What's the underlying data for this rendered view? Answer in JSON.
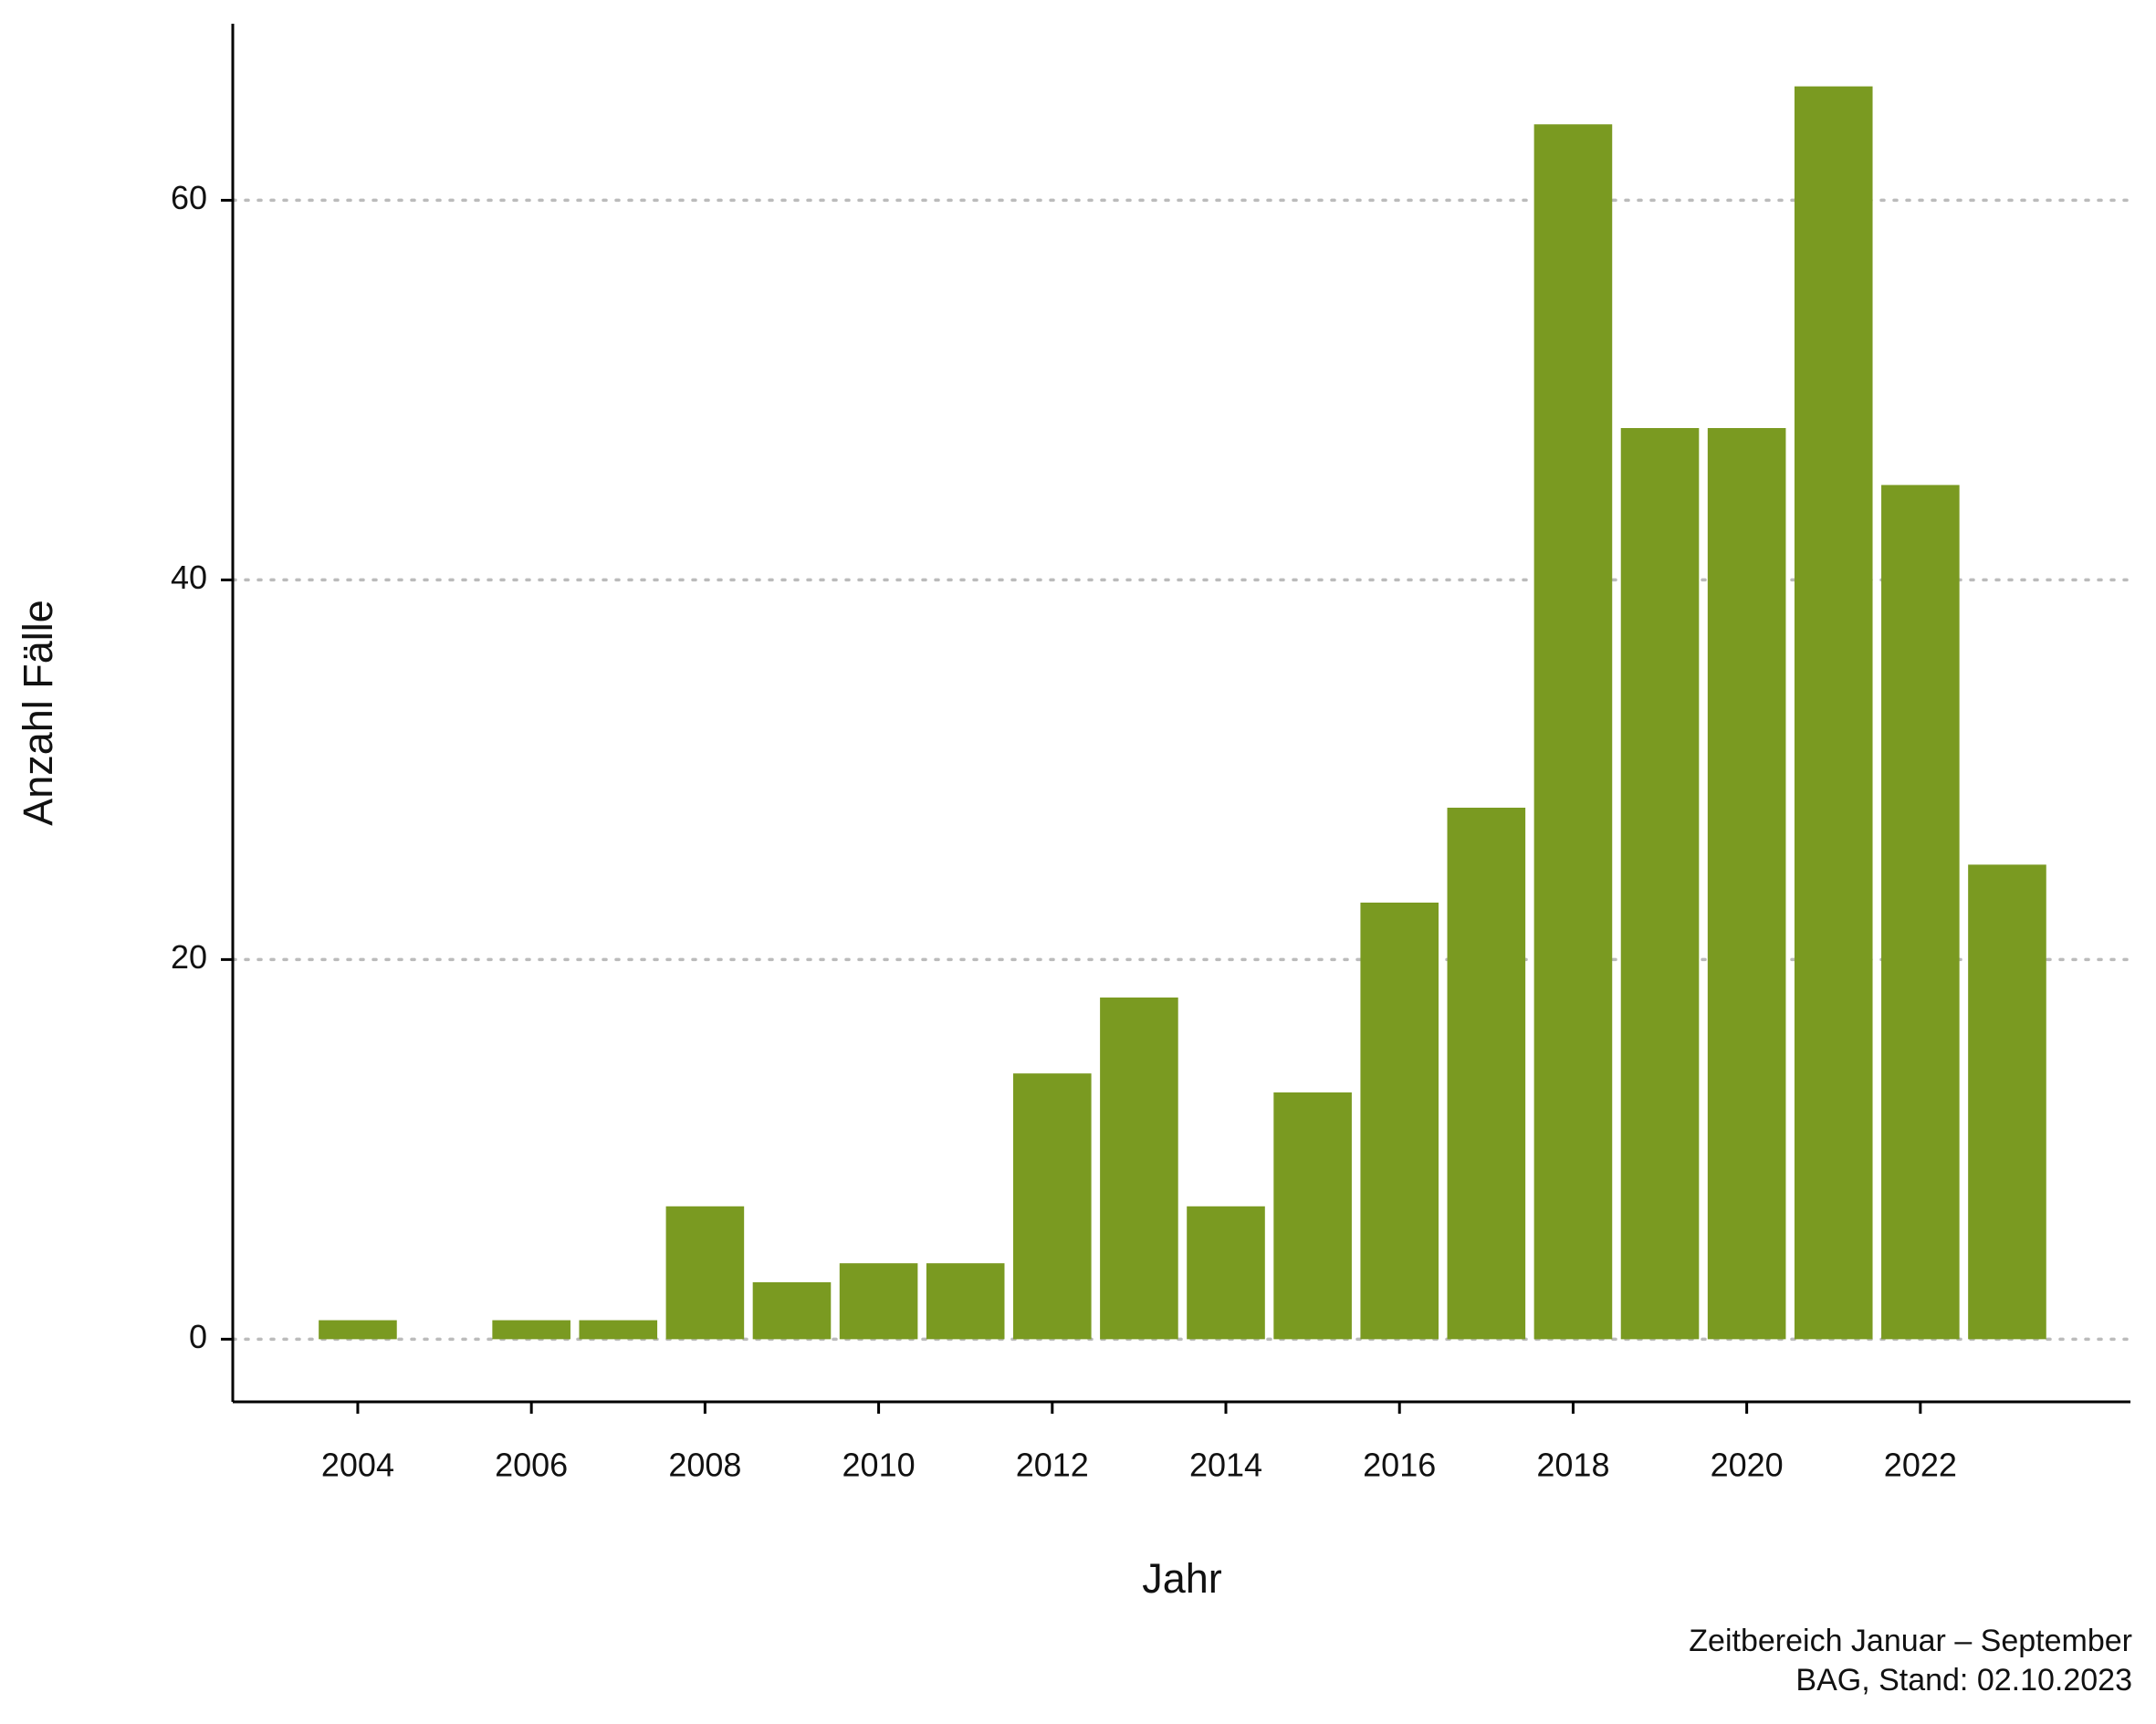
{
  "chart_data": {
    "type": "bar",
    "x_label": "Jahr",
    "y_label": "Anzahl Fälle",
    "annotations": [
      "Zeitbereich Januar – September",
      "BAG, Stand: 02.10.2023"
    ],
    "x": [
      2004,
      2005,
      2006,
      2007,
      2008,
      2009,
      2010,
      2011,
      2012,
      2013,
      2014,
      2015,
      2016,
      2017,
      2018,
      2019,
      2020,
      2021,
      2022,
      2023
    ],
    "values": [
      1,
      0,
      1,
      1,
      7,
      3,
      4,
      4,
      14,
      18,
      7,
      13,
      23,
      28,
      64,
      48,
      48,
      66,
      45,
      25
    ],
    "color": "#7a9a21",
    "xlim": [
      2002.56,
      2024.42
    ],
    "xticks": [
      2004,
      2006,
      2008,
      2010,
      2012,
      2014,
      2016,
      2018,
      2020,
      2022
    ],
    "ylim": [
      -3.3,
      69.3
    ],
    "yticks": [
      0,
      20,
      40,
      60
    ],
    "grid": true
  }
}
